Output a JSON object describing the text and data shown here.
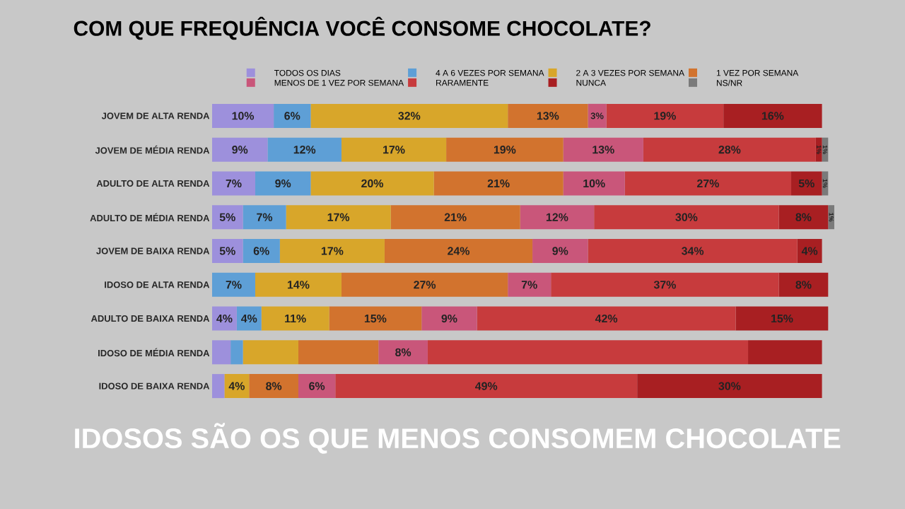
{
  "chart_data": {
    "type": "bar",
    "orientation": "horizontal",
    "stacked": true,
    "title": "COM QUE FREQUÊNCIA VOCÊ CONSOME CHOCOLATE?",
    "categories": [
      "JOVEM DE ALTA RENDA",
      "JOVEM DE MÉDIA RENDA",
      "ADULTO DE ALTA RENDA",
      "ADULTO DE MÉDIA RENDA",
      "JOVEM DE BAIXA RENDA",
      "IDOSO DE ALTA RENDA",
      "ADULTO DE BAIXA RENDA",
      "IDOSO DE MÉDIA RENDA",
      "IDOSO DE BAIXA RENDA"
    ],
    "series": [
      {
        "name": "TODOS OS DIAS",
        "color": "#9d90dc",
        "values": [
          10,
          9,
          7,
          5,
          5,
          0,
          4,
          3,
          2
        ],
        "value_labels": [
          "10%",
          "9%",
          "7%",
          "5%",
          "5%",
          null,
          "4%",
          null,
          null
        ]
      },
      {
        "name": "4 A 6 VEZES POR SEMANA",
        "color": "#5e9fd6",
        "values": [
          6,
          12,
          9,
          7,
          6,
          7,
          4,
          2,
          0
        ],
        "value_labels": [
          "6%",
          "12%",
          "9%",
          "7%",
          "6%",
          "7%",
          "4%",
          null,
          null
        ]
      },
      {
        "name": "2 A 3 VEZES POR SEMANA",
        "color": "#d8a62a",
        "values": [
          32,
          17,
          20,
          17,
          17,
          14,
          11,
          9,
          4
        ],
        "value_labels": [
          "32%",
          "17%",
          "20%",
          "17%",
          "17%",
          "14%",
          "11%",
          null,
          "4%"
        ]
      },
      {
        "name": "1 VEZ POR SEMANA",
        "color": "#d2732e",
        "values": [
          13,
          19,
          21,
          21,
          24,
          27,
          15,
          13,
          8
        ],
        "value_labels": [
          "13%",
          "19%",
          "21%",
          "21%",
          "24%",
          "27%",
          "15%",
          null,
          "8%"
        ]
      },
      {
        "name": "MENOS DE 1 VEZ POR SEMANA",
        "color": "#c9567a",
        "values": [
          3,
          13,
          10,
          12,
          9,
          7,
          9,
          8,
          6
        ],
        "value_labels": [
          "3%",
          "13%",
          "10%",
          "12%",
          "9%",
          "7%",
          "9%",
          "8%",
          "6%"
        ]
      },
      {
        "name": "RARAMENTE",
        "color": "#c73b3d",
        "values": [
          19,
          28,
          27,
          30,
          34,
          37,
          42,
          52,
          49
        ],
        "value_labels": [
          "19%",
          "28%",
          "27%",
          "30%",
          "34%",
          "37%",
          "42%",
          null,
          "49%"
        ]
      },
      {
        "name": "NUNCA",
        "color": "#a81f22",
        "values": [
          16,
          1,
          5,
          8,
          4,
          8,
          15,
          12,
          30
        ],
        "value_labels": [
          "16%",
          "1%",
          "5%",
          "8%",
          "4%",
          "8%",
          "15%",
          null,
          "30%"
        ]
      },
      {
        "name": "NS/NR",
        "color": "#7a7a7a",
        "values": [
          0,
          1,
          1,
          1,
          0,
          0,
          0,
          0,
          0
        ],
        "value_labels": [
          null,
          "1%",
          "1%",
          "1%",
          null,
          null,
          null,
          null,
          null
        ]
      }
    ],
    "legend": "top",
    "annotations": [
      "IDOSOS SÃO OS QUE MENOS CONSOMEM CHOCOLATE"
    ]
  }
}
